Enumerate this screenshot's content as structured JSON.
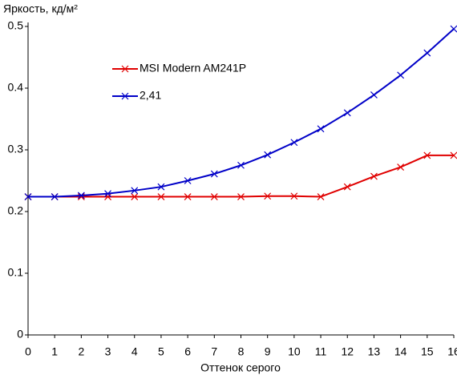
{
  "chart_data": {
    "type": "line",
    "y_label": "Яркость, кд/м²",
    "x_label": "Оттенок серого",
    "x": [
      0,
      1,
      2,
      3,
      4,
      5,
      6,
      7,
      8,
      9,
      10,
      11,
      12,
      13,
      14,
      15,
      16
    ],
    "series": [
      {
        "name": "MSI Modern AM241P",
        "color": "#e00000",
        "values": [
          0.224,
          0.224,
          0.224,
          0.224,
          0.224,
          0.224,
          0.224,
          0.224,
          0.224,
          0.225,
          0.225,
          0.224,
          0.24,
          0.257,
          0.272,
          0.291,
          0.291
        ]
      },
      {
        "name": "2,41",
        "color": "#0000c8",
        "values": [
          0.224,
          0.224,
          0.226,
          0.229,
          0.234,
          0.24,
          0.25,
          0.261,
          0.275,
          0.292,
          0.312,
          0.334,
          0.36,
          0.389,
          0.421,
          0.457,
          0.496
        ]
      }
    ],
    "xlim": [
      0,
      16
    ],
    "xticks": [
      0,
      1,
      2,
      3,
      4,
      5,
      6,
      7,
      8,
      9,
      10,
      11,
      12,
      13,
      14,
      15,
      16
    ],
    "ylim": [
      0,
      0.5
    ],
    "yticks": [
      0,
      0.1,
      0.2,
      0.3,
      0.4,
      0.5
    ],
    "grid": false
  }
}
